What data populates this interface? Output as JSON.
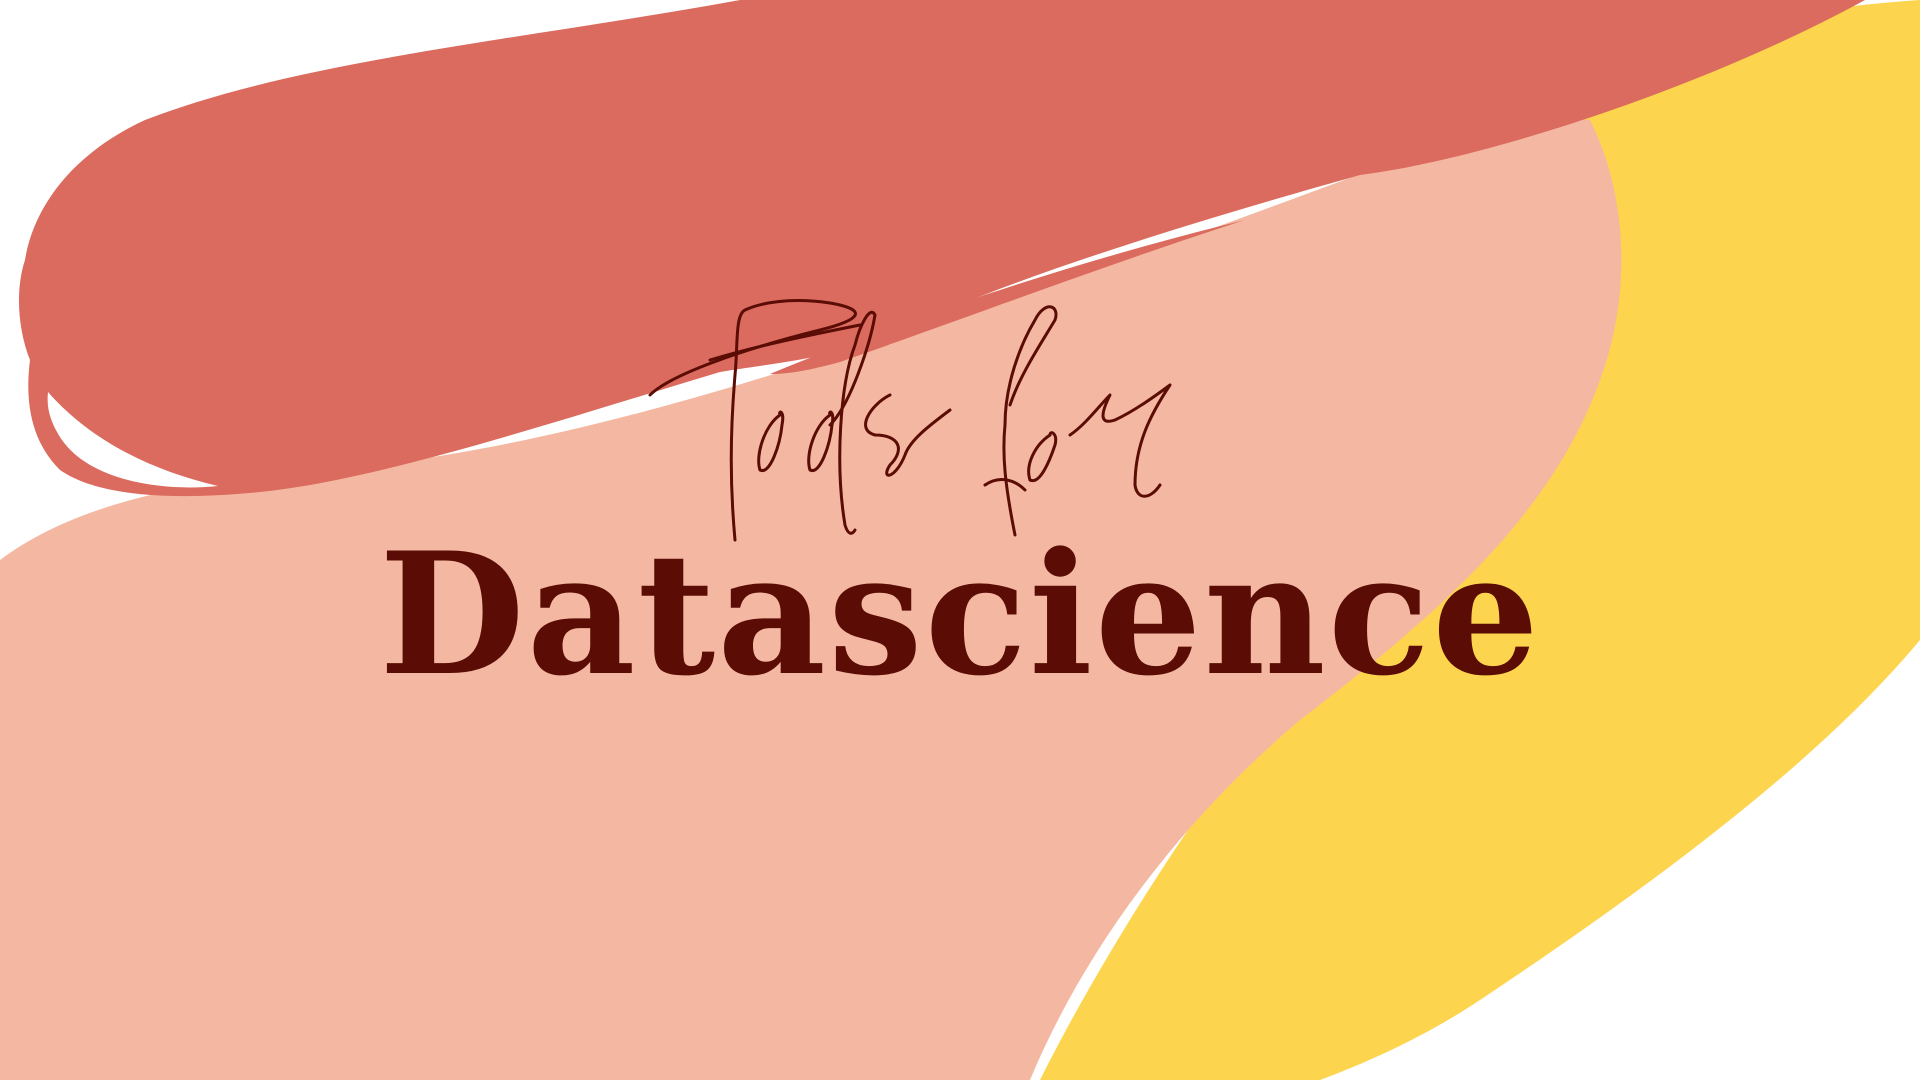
{
  "slide": {
    "script_title": "Tools for",
    "main_title": "Datascience"
  },
  "colors": {
    "background": "#ffffff",
    "coral": "#db6b5e",
    "peach": "#f4b8a2",
    "yellow": "#fdd44d",
    "title_text": "#5a0c05"
  }
}
